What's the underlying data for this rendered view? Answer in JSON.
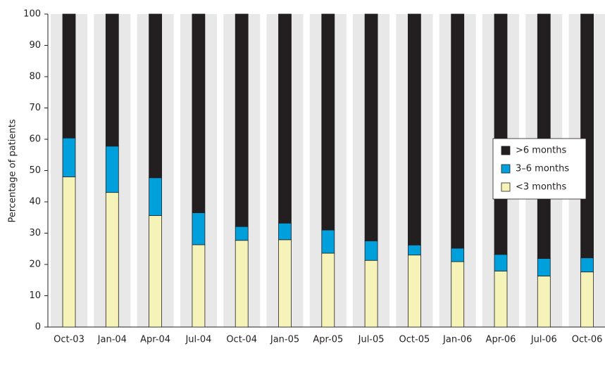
{
  "chart_data": {
    "type": "stacked_bar",
    "y_label": "Percentage of patients",
    "categories": [
      "Oct-03",
      "Jan-04",
      "Apr-04",
      "Jul-04",
      "Oct-04",
      "Jan-05",
      "Apr-05",
      "Jul-05",
      "Oct-05",
      "Jan-06",
      "Apr-06",
      "Jul-06",
      "Oct-06"
    ],
    "series": [
      {
        "name": "<3 months",
        "color": "#f5f3b8",
        "values": [
          48,
          43,
          35.6,
          26.3,
          27.7,
          27.9,
          23.6,
          21.3,
          23,
          20.9,
          17.9,
          16.3,
          17.6
        ]
      },
      {
        "name": "3–6 months",
        "color": "#00a0dc",
        "values": [
          12.4,
          14.8,
          12.1,
          10.2,
          4.4,
          5.3,
          7.4,
          6.2,
          3.2,
          4.3,
          5.3,
          5.6,
          4.5
        ]
      },
      {
        "name": ">6 months",
        "color": "#231f20",
        "values": [
          39.6,
          42.2,
          52.3,
          63.5,
          67.9,
          66.8,
          69,
          72.5,
          73.8,
          74.8,
          76.8,
          78.1,
          77.9
        ]
      }
    ],
    "ylim": [
      0,
      100
    ],
    "yticks": [
      0,
      10,
      20,
      30,
      40,
      50,
      60,
      70,
      80,
      90,
      100
    ],
    "legend": "right"
  }
}
